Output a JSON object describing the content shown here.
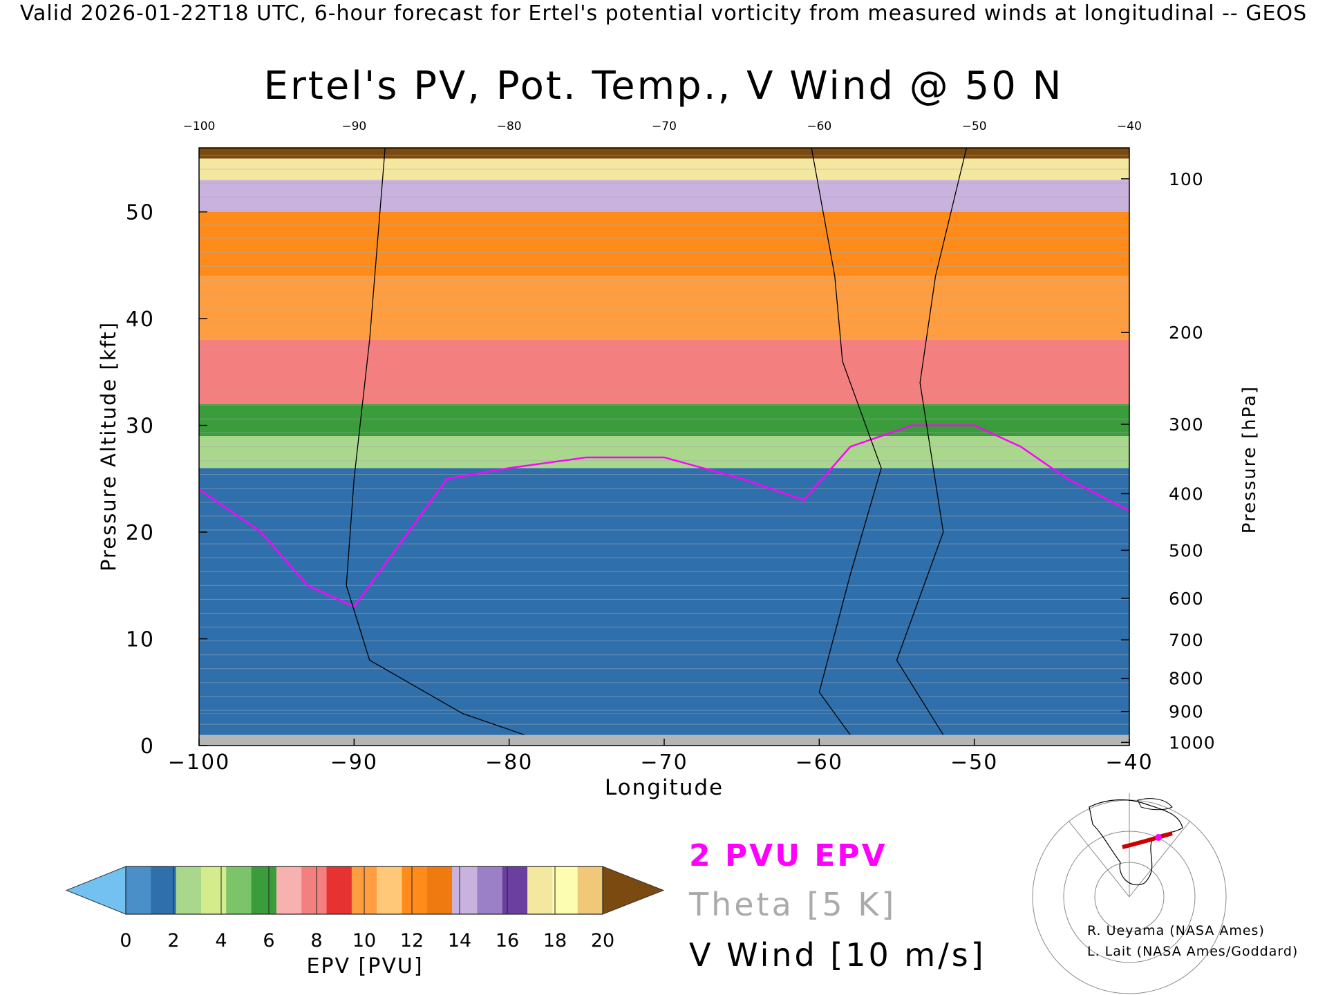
{
  "header": {
    "banner": "Valid 2026-01-22T18 UTC, 6-hour forecast for Ertel's potential vorticity from measured winds at longitudinal -- GEOS"
  },
  "chart_data": {
    "type": "heatmap",
    "title": "Ertel's PV, Pot. Temp., V Wind @ 50 N",
    "xlabel": "Longitude",
    "ylabel_left": "Pressure Altitude [kft]",
    "ylabel_right": "Pressure [hPa]",
    "xlim": [
      -100,
      -40
    ],
    "ylim_kft": [
      0,
      56
    ],
    "x_ticks": [
      "−100",
      "−90",
      "−80",
      "−70",
      "−60",
      "−50",
      "−40"
    ],
    "x_tick_values": [
      -100,
      -90,
      -80,
      -70,
      -60,
      -50,
      -40
    ],
    "top_ticks": [
      "−100",
      "−90",
      "−80",
      "−70",
      "−60",
      "−50",
      "−40"
    ],
    "y_left_ticks": [
      "0",
      "10",
      "20",
      "30",
      "40",
      "50"
    ],
    "y_left_values": [
      0,
      10,
      20,
      30,
      40,
      50
    ],
    "y_right_ticks": [
      "1000",
      "900",
      "800",
      "700",
      "600",
      "500",
      "400",
      "300",
      "200",
      "100"
    ],
    "y_right_kft": [
      0.3,
      3.2,
      6.3,
      9.9,
      13.8,
      18.3,
      23.6,
      30.1,
      38.7,
      53.1
    ],
    "grid": false,
    "epv_layers": [
      {
        "pvu": 1.2,
        "base": 0,
        "top": 3
      },
      {
        "pvu": 1.0,
        "base": 3,
        "top": 26
      },
      {
        "pvu": 2.5,
        "base": 26,
        "top": 29
      },
      {
        "pvu": 5.0,
        "base": 29,
        "top": 32
      },
      {
        "pvu": 7.5,
        "base": 32,
        "top": 38
      },
      {
        "pvu": 9.5,
        "base": 38,
        "top": 44
      },
      {
        "pvu": 11.5,
        "base": 44,
        "top": 50
      },
      {
        "pvu": 13.5,
        "base": 50,
        "top": 53
      },
      {
        "pvu": 16.5,
        "base": 53,
        "top": 55
      },
      {
        "pvu": 19,
        "base": 55,
        "top": 56
      }
    ],
    "colorbar": {
      "label": "EPV [PVU]",
      "ticks": [
        "0",
        "2",
        "4",
        "6",
        "8",
        "10",
        "12",
        "14",
        "16",
        "18",
        "20"
      ],
      "colors": [
        "#73c1f0",
        "#4a8fc8",
        "#2f6fab",
        "#a9d88c",
        "#d4ec8c",
        "#7cc46a",
        "#3a9c3a",
        "#f7b2b0",
        "#f47f7f",
        "#e73232",
        "#ff9e40",
        "#ffc878",
        "#ff8c1a",
        "#ee7a10",
        "#c9b3de",
        "#9b7fc7",
        "#6b3fa0",
        "#f4e8a0",
        "#fdfdb2",
        "#f0c878",
        "#7a4a10"
      ]
    },
    "legend": {
      "pv2": "2 PVU EPV",
      "theta": "Theta [5 K]",
      "vwind": "V Wind [10 m/s]",
      "colors": {
        "pv2": "#ff00ff",
        "theta": "#aaaaaa",
        "vwind": "#000000"
      }
    },
    "credits": [
      "R. Ueyama (NASA Ames)",
      "L. Lait (NASA Ames/Goddard)"
    ]
  }
}
